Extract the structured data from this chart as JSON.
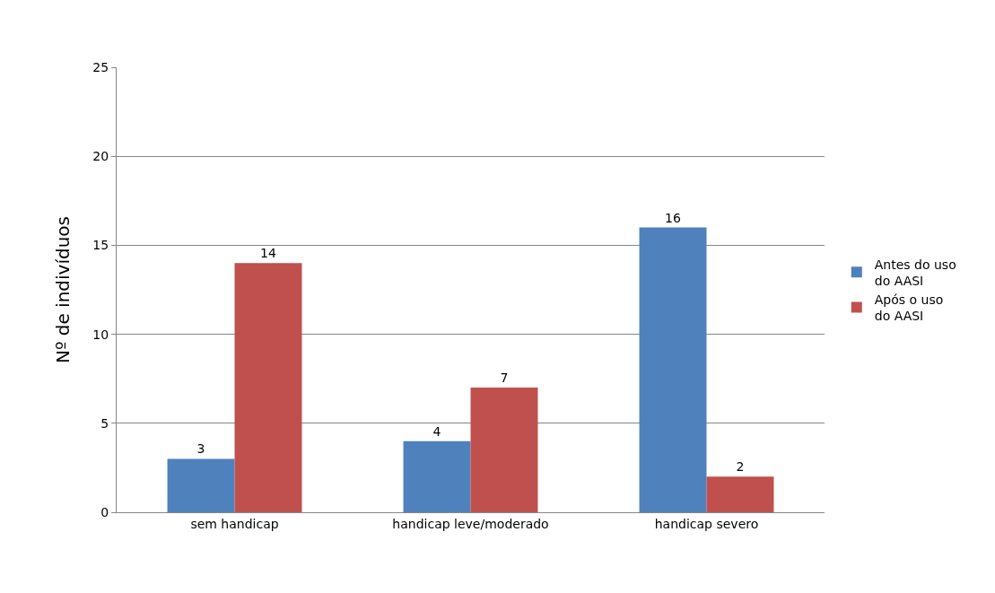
{
  "chart_data": {
    "type": "bar",
    "ylabel": "Nº de indivíduos",
    "categories": [
      "sem handicap",
      "handicap leve/moderado",
      "handicap severo"
    ],
    "series": [
      {
        "name": "Antes do uso do AASI",
        "color": "#4f81bd",
        "values": [
          3,
          4,
          16
        ]
      },
      {
        "name": "Após o uso do AASI",
        "color": "#c0504d",
        "values": [
          14,
          7,
          2
        ]
      }
    ],
    "ylim": [
      0,
      25
    ],
    "yticks": [
      0,
      5,
      10,
      15,
      20,
      25
    ],
    "grid": "y",
    "legend": "right",
    "data_labels": true
  }
}
